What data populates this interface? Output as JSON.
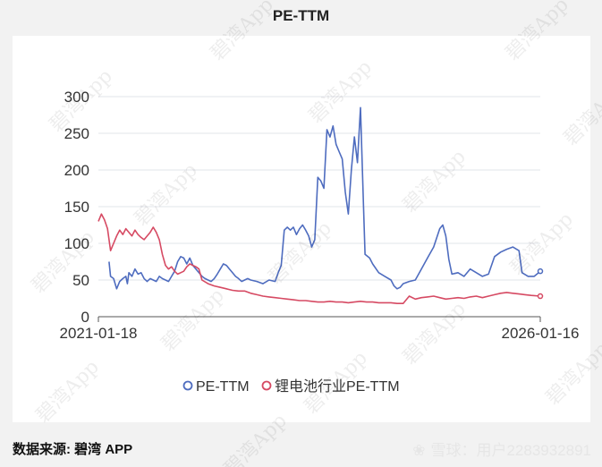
{
  "page": {
    "title": "PE-TTM",
    "source_label": "数据来源: 碧湾 APP",
    "watermark_text": "碧湾App",
    "snowball_label": "雪球：用户2283932891"
  },
  "chart_data": {
    "type": "line",
    "title": "PE-TTM",
    "x_start_label": "2021-01-18",
    "x_end_label": "2026-01-16",
    "ylim": [
      0,
      300
    ],
    "yticks": [
      0,
      50,
      100,
      150,
      200,
      250,
      300
    ],
    "grid": true,
    "legend_position": "bottom-center",
    "series": [
      {
        "name": "PE-TTM",
        "color": "#4e6cbf",
        "points": [
          [
            0.035,
            75
          ],
          [
            0.04,
            55
          ],
          [
            0.05,
            52
          ],
          [
            0.06,
            38
          ],
          [
            0.07,
            48
          ],
          [
            0.08,
            52
          ],
          [
            0.09,
            55
          ],
          [
            0.095,
            45
          ],
          [
            0.1,
            60
          ],
          [
            0.11,
            55
          ],
          [
            0.12,
            65
          ],
          [
            0.13,
            58
          ],
          [
            0.14,
            60
          ],
          [
            0.15,
            52
          ],
          [
            0.16,
            48
          ],
          [
            0.17,
            52
          ],
          [
            0.18,
            50
          ],
          [
            0.19,
            48
          ],
          [
            0.2,
            55
          ],
          [
            0.21,
            52
          ],
          [
            0.22,
            50
          ],
          [
            0.23,
            48
          ],
          [
            0.24,
            55
          ],
          [
            0.25,
            62
          ],
          [
            0.26,
            75
          ],
          [
            0.27,
            82
          ],
          [
            0.28,
            80
          ],
          [
            0.29,
            72
          ],
          [
            0.3,
            80
          ],
          [
            0.31,
            70
          ],
          [
            0.32,
            65
          ],
          [
            0.33,
            60
          ],
          [
            0.34,
            55
          ],
          [
            0.35,
            52
          ],
          [
            0.36,
            50
          ],
          [
            0.37,
            48
          ],
          [
            0.38,
            52
          ],
          [
            0.39,
            58
          ],
          [
            0.4,
            65
          ],
          [
            0.41,
            72
          ],
          [
            0.42,
            70
          ],
          [
            0.43,
            65
          ],
          [
            0.44,
            60
          ],
          [
            0.45,
            55
          ],
          [
            0.46,
            52
          ],
          [
            0.47,
            48
          ],
          [
            0.48,
            50
          ],
          [
            0.49,
            52
          ],
          [
            0.5,
            50
          ],
          [
            0.52,
            48
          ],
          [
            0.54,
            45
          ],
          [
            0.56,
            50
          ],
          [
            0.58,
            48
          ],
          [
            0.59,
            60
          ],
          [
            0.6,
            70
          ],
          [
            0.61,
            118
          ],
          [
            0.62,
            122
          ],
          [
            0.63,
            118
          ],
          [
            0.64,
            122
          ],
          [
            0.65,
            112
          ],
          [
            0.66,
            120
          ],
          [
            0.67,
            125
          ],
          [
            0.68,
            118
          ],
          [
            0.69,
            110
          ],
          [
            0.7,
            95
          ],
          [
            0.71,
            105
          ],
          [
            0.72,
            190
          ],
          [
            0.73,
            185
          ],
          [
            0.74,
            175
          ],
          [
            0.75,
            255
          ],
          [
            0.76,
            245
          ],
          [
            0.77,
            260
          ],
          [
            0.78,
            235
          ],
          [
            0.79,
            225
          ],
          [
            0.8,
            215
          ],
          [
            0.81,
            170
          ],
          [
            0.82,
            140
          ],
          [
            0.83,
            200
          ],
          [
            0.84,
            245
          ],
          [
            0.85,
            210
          ],
          [
            0.86,
            285
          ],
          [
            0.87,
            150
          ],
          [
            0.875,
            85
          ],
          [
            0.89,
            80
          ],
          [
            0.9,
            72
          ],
          [
            0.92,
            60
          ],
          [
            0.94,
            55
          ],
          [
            0.96,
            50
          ],
          [
            0.97,
            42
          ],
          [
            0.98,
            38
          ],
          [
            0.99,
            40
          ],
          [
            1.0,
            45
          ],
          [
            1.02,
            48
          ],
          [
            1.04,
            50
          ],
          [
            1.06,
            65
          ],
          [
            1.08,
            80
          ],
          [
            1.1,
            95
          ],
          [
            1.12,
            120
          ],
          [
            1.13,
            125
          ],
          [
            1.14,
            110
          ],
          [
            1.15,
            78
          ],
          [
            1.16,
            58
          ],
          [
            1.18,
            60
          ],
          [
            1.2,
            55
          ],
          [
            1.22,
            65
          ],
          [
            1.24,
            60
          ],
          [
            1.26,
            55
          ],
          [
            1.28,
            58
          ],
          [
            1.3,
            82
          ],
          [
            1.32,
            88
          ],
          [
            1.34,
            92
          ],
          [
            1.36,
            95
          ],
          [
            1.38,
            90
          ],
          [
            1.39,
            60
          ],
          [
            1.41,
            55
          ],
          [
            1.43,
            55
          ],
          [
            1.45,
            62
          ]
        ]
      },
      {
        "name": "锂电池行业PE-TTM",
        "color": "#d64a63",
        "points": [
          [
            0.0,
            130
          ],
          [
            0.01,
            140
          ],
          [
            0.02,
            132
          ],
          [
            0.03,
            120
          ],
          [
            0.04,
            90
          ],
          [
            0.05,
            100
          ],
          [
            0.06,
            110
          ],
          [
            0.07,
            118
          ],
          [
            0.08,
            112
          ],
          [
            0.09,
            120
          ],
          [
            0.1,
            115
          ],
          [
            0.11,
            110
          ],
          [
            0.12,
            118
          ],
          [
            0.13,
            112
          ],
          [
            0.14,
            108
          ],
          [
            0.15,
            105
          ],
          [
            0.16,
            110
          ],
          [
            0.17,
            115
          ],
          [
            0.18,
            122
          ],
          [
            0.19,
            115
          ],
          [
            0.2,
            105
          ],
          [
            0.21,
            85
          ],
          [
            0.22,
            70
          ],
          [
            0.23,
            65
          ],
          [
            0.24,
            68
          ],
          [
            0.25,
            62
          ],
          [
            0.26,
            58
          ],
          [
            0.27,
            60
          ],
          [
            0.28,
            62
          ],
          [
            0.29,
            68
          ],
          [
            0.3,
            72
          ],
          [
            0.31,
            70
          ],
          [
            0.32,
            68
          ],
          [
            0.33,
            65
          ],
          [
            0.34,
            50
          ],
          [
            0.36,
            45
          ],
          [
            0.38,
            42
          ],
          [
            0.4,
            40
          ],
          [
            0.42,
            38
          ],
          [
            0.44,
            36
          ],
          [
            0.46,
            35
          ],
          [
            0.48,
            35
          ],
          [
            0.5,
            32
          ],
          [
            0.52,
            30
          ],
          [
            0.54,
            28
          ],
          [
            0.56,
            27
          ],
          [
            0.58,
            26
          ],
          [
            0.6,
            25
          ],
          [
            0.62,
            24
          ],
          [
            0.64,
            23
          ],
          [
            0.66,
            22
          ],
          [
            0.68,
            22
          ],
          [
            0.7,
            21
          ],
          [
            0.72,
            20
          ],
          [
            0.74,
            20
          ],
          [
            0.76,
            21
          ],
          [
            0.78,
            20
          ],
          [
            0.8,
            20
          ],
          [
            0.82,
            19
          ],
          [
            0.84,
            20
          ],
          [
            0.86,
            21
          ],
          [
            0.88,
            20
          ],
          [
            0.9,
            20
          ],
          [
            0.92,
            19
          ],
          [
            0.94,
            19
          ],
          [
            0.96,
            19
          ],
          [
            0.98,
            18
          ],
          [
            1.0,
            18
          ],
          [
            1.02,
            28
          ],
          [
            1.04,
            24
          ],
          [
            1.06,
            26
          ],
          [
            1.08,
            27
          ],
          [
            1.1,
            28
          ],
          [
            1.12,
            26
          ],
          [
            1.14,
            24
          ],
          [
            1.16,
            25
          ],
          [
            1.18,
            26
          ],
          [
            1.2,
            25
          ],
          [
            1.22,
            27
          ],
          [
            1.24,
            28
          ],
          [
            1.26,
            26
          ],
          [
            1.28,
            28
          ],
          [
            1.3,
            30
          ],
          [
            1.32,
            32
          ],
          [
            1.34,
            33
          ],
          [
            1.36,
            32
          ],
          [
            1.38,
            31
          ],
          [
            1.4,
            30
          ],
          [
            1.42,
            29
          ],
          [
            1.45,
            28
          ]
        ]
      }
    ],
    "x_domain": [
      0,
      1.45
    ]
  }
}
